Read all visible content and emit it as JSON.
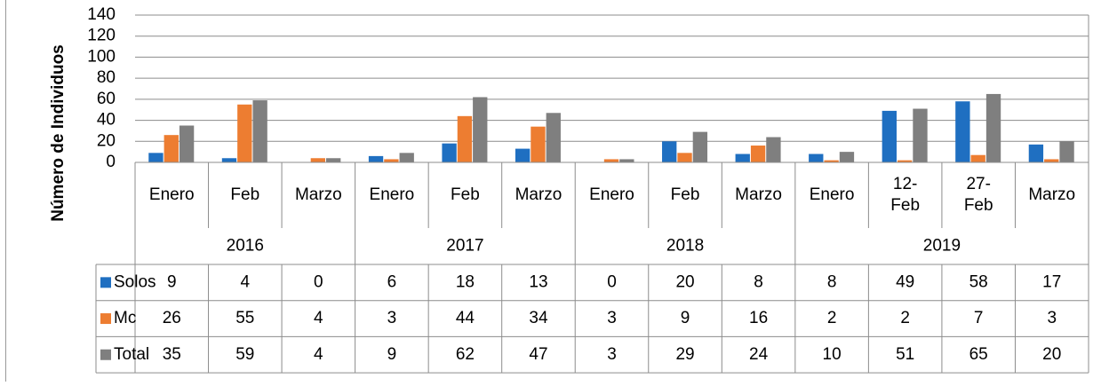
{
  "chart_data": {
    "type": "bar",
    "y_axis_label": "Número de Individuos",
    "category_groups": [
      {
        "name": "2016",
        "categories": [
          "Enero",
          "Feb",
          "Marzo"
        ]
      },
      {
        "name": "2017",
        "categories": [
          "Enero",
          "Feb",
          "Marzo"
        ]
      },
      {
        "name": "2018",
        "categories": [
          "Enero",
          "Feb",
          "Marzo"
        ]
      },
      {
        "name": "2019",
        "categories": [
          "Enero",
          "12-Feb",
          "27-Feb",
          "Marzo"
        ]
      }
    ],
    "series": [
      {
        "name": "Solos",
        "color": "#1f6fc1",
        "values": [
          9,
          4,
          0,
          6,
          18,
          13,
          0,
          20,
          8,
          8,
          49,
          58,
          17
        ]
      },
      {
        "name": "Mc",
        "color": "#ed7d31",
        "values": [
          26,
          55,
          4,
          3,
          44,
          34,
          3,
          9,
          16,
          2,
          2,
          7,
          3
        ]
      },
      {
        "name": "Total",
        "color": "#7f7f7f",
        "values": [
          35,
          59,
          4,
          9,
          62,
          47,
          3,
          29,
          24,
          10,
          51,
          65,
          20
        ]
      }
    ],
    "ylim": [
      0,
      140
    ],
    "yticks": [
      0,
      20,
      40,
      60,
      80,
      100,
      120,
      140
    ],
    "grid": true
  }
}
